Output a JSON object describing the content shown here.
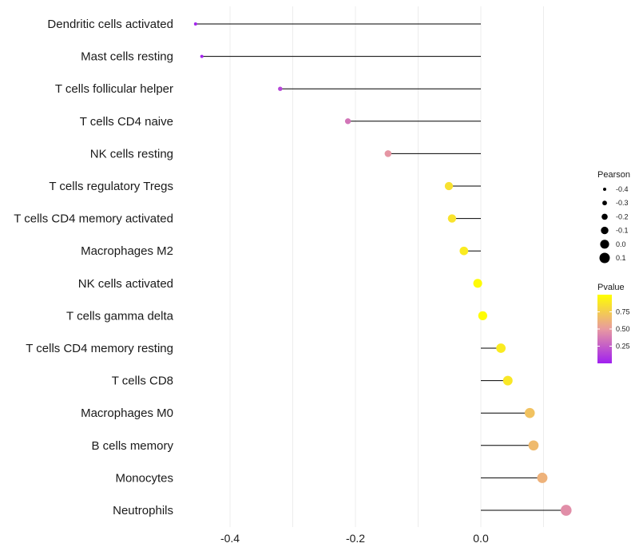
{
  "chart_data": {
    "type": "lollipop",
    "categories": [
      "Dendritic cells activated",
      "Mast cells resting",
      "T cells follicular helper",
      "T cells CD4 naive",
      "NK cells resting",
      "T cells regulatory  Tregs",
      "T cells CD4 memory activated",
      "Macrophages M2",
      "NK cells activated",
      "T cells gamma delta",
      "T cells CD4 memory resting",
      "T cells CD8",
      "Macrophages M0",
      "B cells memory",
      "Monocytes",
      "Neutrophils"
    ],
    "pearson": [
      -0.455,
      -0.445,
      -0.32,
      -0.212,
      -0.148,
      -0.051,
      -0.046,
      -0.027,
      -0.005,
      0.003,
      0.032,
      0.043,
      0.078,
      0.084,
      0.098,
      0.136
    ],
    "pvalue": [
      0.02,
      0.02,
      0.15,
      0.35,
      0.48,
      0.85,
      0.86,
      0.9,
      0.98,
      0.99,
      0.9,
      0.88,
      0.7,
      0.66,
      0.62,
      0.45
    ],
    "x_ticks": [
      -0.4,
      -0.2,
      0.0
    ],
    "x_tick_labels": [
      "-0.4",
      "-0.2",
      "0.0"
    ],
    "xlim": [
      -0.5,
      0.15
    ],
    "grid": true,
    "legend_size": {
      "title": "Pearson",
      "values": [
        -0.4,
        -0.3,
        -0.2,
        -0.1,
        0.0,
        0.1
      ],
      "labels": [
        "-0.4",
        "-0.3",
        "-0.2",
        "-0.1",
        "0.0",
        "0.1"
      ]
    },
    "legend_color": {
      "title": "Pvalue",
      "ticks": [
        0.25,
        0.5,
        0.75
      ],
      "tick_labels": [
        "0.25",
        "0.50",
        "0.75"
      ],
      "range": [
        0.0,
        1.0
      ],
      "low_color": "#a020f0",
      "mid_color": "#e89aa0",
      "high_color": "#ffff00"
    },
    "legend_position": "right"
  }
}
